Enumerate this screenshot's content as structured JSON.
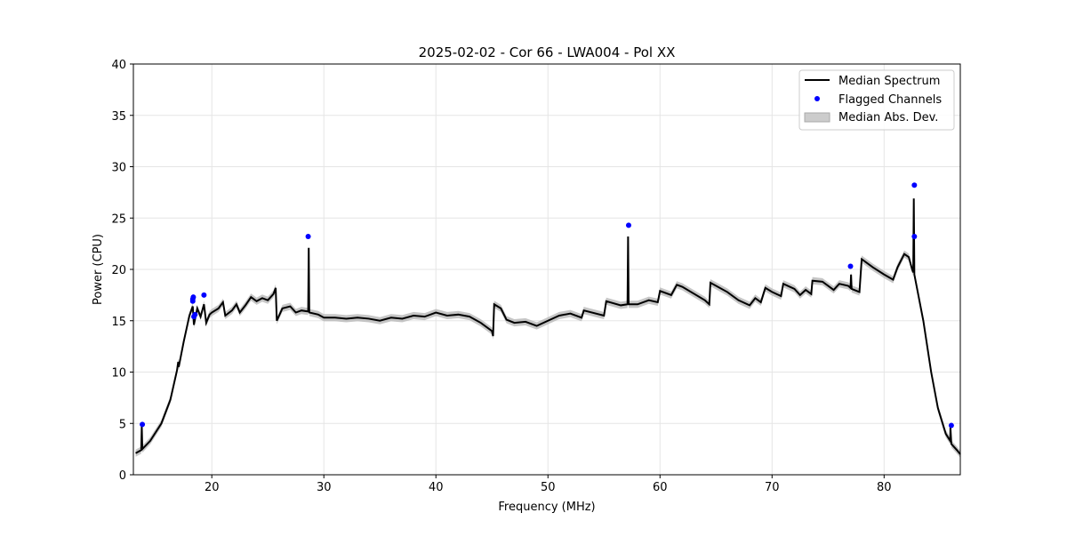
{
  "chart_data": {
    "type": "line",
    "title": "2025-02-02 - Cor 66 - LWA004 - Pol XX",
    "xlabel": "Frequency (MHz)",
    "ylabel": "Power (CPU)",
    "xlim": [
      13.0,
      86.8
    ],
    "ylim": [
      0,
      40
    ],
    "xticks": [
      20,
      30,
      40,
      50,
      60,
      70,
      80
    ],
    "yticks": [
      0,
      5,
      10,
      15,
      20,
      25,
      30,
      35,
      40
    ],
    "grid": true,
    "legend_position": "top-right",
    "legend": [
      "Median Spectrum",
      "Flagged Channels",
      "Median Abs. Dev."
    ],
    "colors": {
      "median": "#000000",
      "flagged": "#0000ff",
      "mad": "#b0b0b0"
    },
    "mad_width": 0.35,
    "median_spectrum": [
      [
        13.2,
        2.1
      ],
      [
        13.7,
        2.4
      ],
      [
        13.75,
        4.7
      ],
      [
        13.8,
        2.5
      ],
      [
        14.5,
        3.3
      ],
      [
        15.5,
        5.0
      ],
      [
        16.3,
        7.3
      ],
      [
        16.9,
        10.2
      ],
      [
        17.0,
        11.0
      ],
      [
        17.05,
        10.5
      ],
      [
        17.5,
        13.0
      ],
      [
        18.0,
        15.5
      ],
      [
        18.3,
        16.4
      ],
      [
        18.4,
        14.6
      ],
      [
        18.7,
        16.2
      ],
      [
        19.0,
        15.4
      ],
      [
        19.3,
        16.6
      ],
      [
        19.5,
        14.8
      ],
      [
        19.8,
        15.6
      ],
      [
        20.0,
        15.8
      ],
      [
        20.6,
        16.2
      ],
      [
        21.0,
        16.8
      ],
      [
        21.2,
        15.5
      ],
      [
        21.8,
        16.0
      ],
      [
        22.2,
        16.6
      ],
      [
        22.5,
        15.8
      ],
      [
        23.0,
        16.5
      ],
      [
        23.5,
        17.3
      ],
      [
        24.0,
        16.9
      ],
      [
        24.5,
        17.2
      ],
      [
        25.0,
        17.0
      ],
      [
        25.5,
        17.6
      ],
      [
        25.7,
        18.2
      ],
      [
        25.8,
        15.0
      ],
      [
        26.3,
        16.2
      ],
      [
        27.0,
        16.4
      ],
      [
        27.5,
        15.8
      ],
      [
        28.0,
        16.0
      ],
      [
        28.6,
        15.9
      ],
      [
        28.65,
        22.1
      ],
      [
        28.7,
        15.8
      ],
      [
        29.5,
        15.6
      ],
      [
        30.0,
        15.3
      ],
      [
        31,
        15.3
      ],
      [
        32,
        15.2
      ],
      [
        33,
        15.3
      ],
      [
        34,
        15.2
      ],
      [
        35,
        15.0
      ],
      [
        36,
        15.3
      ],
      [
        37,
        15.2
      ],
      [
        38,
        15.5
      ],
      [
        39,
        15.4
      ],
      [
        40,
        15.8
      ],
      [
        41,
        15.5
      ],
      [
        42,
        15.6
      ],
      [
        43,
        15.4
      ],
      [
        44,
        14.8
      ],
      [
        45.0,
        14.0
      ],
      [
        45.1,
        13.5
      ],
      [
        45.2,
        16.6
      ],
      [
        45.8,
        16.2
      ],
      [
        46.3,
        15.1
      ],
      [
        47,
        14.8
      ],
      [
        48,
        14.9
      ],
      [
        49,
        14.5
      ],
      [
        50,
        15.0
      ],
      [
        51,
        15.5
      ],
      [
        52,
        15.7
      ],
      [
        53,
        15.3
      ],
      [
        53.2,
        16.0
      ],
      [
        55,
        15.5
      ],
      [
        55.2,
        16.9
      ],
      [
        56.5,
        16.5
      ],
      [
        57.1,
        16.6
      ],
      [
        57.15,
        23.2
      ],
      [
        57.2,
        16.6
      ],
      [
        58,
        16.6
      ],
      [
        59,
        17.0
      ],
      [
        59.8,
        16.8
      ],
      [
        60,
        17.9
      ],
      [
        61,
        17.5
      ],
      [
        61.5,
        18.5
      ],
      [
        62,
        18.3
      ],
      [
        64,
        17.0
      ],
      [
        64.4,
        16.6
      ],
      [
        64.5,
        18.7
      ],
      [
        66,
        17.8
      ],
      [
        67,
        17.0
      ],
      [
        68,
        16.5
      ],
      [
        68.5,
        17.2
      ],
      [
        69,
        16.8
      ],
      [
        69.4,
        18.2
      ],
      [
        70,
        17.8
      ],
      [
        70.8,
        17.4
      ],
      [
        71,
        18.6
      ],
      [
        72,
        18.1
      ],
      [
        72.5,
        17.5
      ],
      [
        73,
        18.0
      ],
      [
        73.5,
        17.6
      ],
      [
        73.6,
        18.9
      ],
      [
        74.5,
        18.8
      ],
      [
        75.5,
        18.0
      ],
      [
        76,
        18.6
      ],
      [
        76.8,
        18.4
      ],
      [
        77.0,
        18.2
      ],
      [
        77.05,
        19.5
      ],
      [
        77.1,
        18.1
      ],
      [
        77.8,
        17.8
      ],
      [
        78,
        21.0
      ],
      [
        79,
        20.2
      ],
      [
        80,
        19.5
      ],
      [
        80.8,
        19.0
      ],
      [
        81.2,
        20.2
      ],
      [
        81.8,
        21.5
      ],
      [
        82.2,
        21.2
      ],
      [
        82.5,
        20.0
      ],
      [
        82.6,
        19.7
      ],
      [
        82.65,
        26.9
      ],
      [
        82.7,
        19.5
      ],
      [
        83.5,
        15.0
      ],
      [
        84.2,
        10.0
      ],
      [
        84.8,
        6.5
      ],
      [
        85.5,
        4.0
      ],
      [
        85.9,
        3.3
      ],
      [
        85.92,
        4.6
      ],
      [
        86.0,
        3.0
      ],
      [
        86.5,
        2.4
      ],
      [
        86.8,
        2.0
      ]
    ],
    "flagged_channels": [
      [
        13.8,
        4.9
      ],
      [
        18.3,
        17.1
      ],
      [
        18.35,
        17.3
      ],
      [
        18.3,
        16.9
      ],
      [
        18.4,
        15.4
      ],
      [
        18.5,
        15.6
      ],
      [
        19.3,
        17.5
      ],
      [
        28.6,
        23.2
      ],
      [
        57.2,
        24.3
      ],
      [
        77.0,
        20.3
      ],
      [
        82.7,
        28.2
      ],
      [
        82.7,
        23.2
      ],
      [
        86.0,
        4.8
      ]
    ]
  }
}
